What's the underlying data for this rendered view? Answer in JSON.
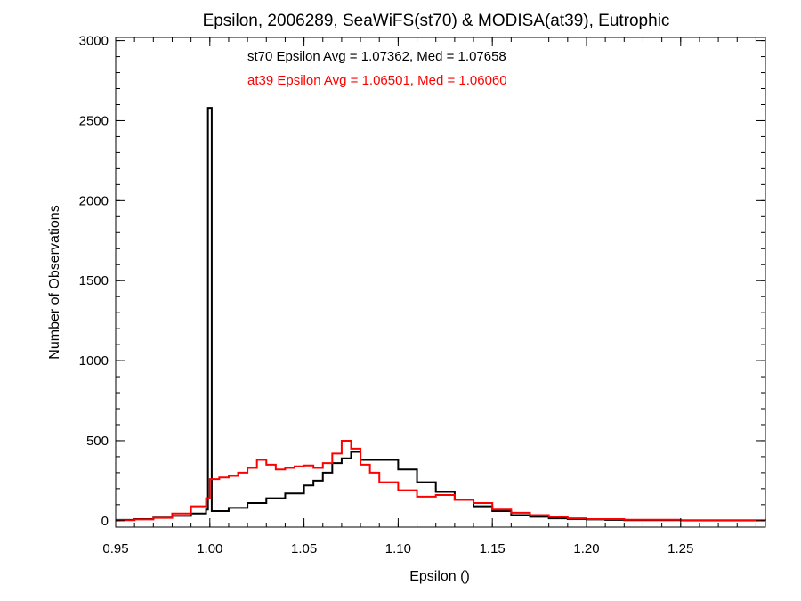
{
  "chart_data": {
    "type": "line",
    "step": true,
    "title": "Epsilon, 2006289, SeaWiFS(st70) & MODISA(at39), Eutrophic",
    "xlabel": "Epsilon ()",
    "ylabel": "Number of Observations",
    "xlim": [
      0.95,
      1.295
    ],
    "ylim": [
      -40,
      3020
    ],
    "x_ticks": [
      0.95,
      1.0,
      1.05,
      1.1,
      1.15,
      1.2,
      1.25
    ],
    "x_tick_labels": [
      "0.95",
      "1.00",
      "1.05",
      "1.10",
      "1.15",
      "1.20",
      "1.25"
    ],
    "y_ticks": [
      0,
      500,
      1000,
      1500,
      2000,
      2500,
      3000
    ],
    "y_tick_labels": [
      "0",
      "500",
      "1000",
      "1500",
      "2000",
      "2500",
      "3000"
    ],
    "grid": false,
    "annotations": [
      {
        "text": "st70 Epsilon Avg = 1.07362, Med = 1.07658",
        "color": "#000000"
      },
      {
        "text": "at39 Epsilon Avg = 1.06501, Med = 1.06060",
        "color": "#ff0000"
      }
    ],
    "series": [
      {
        "color": "#000000",
        "x": [
          0.95,
          0.96,
          0.97,
          0.98,
          0.99,
          0.998,
          0.999,
          1.0,
          1.001,
          1.01,
          1.02,
          1.03,
          1.04,
          1.05,
          1.055,
          1.06,
          1.065,
          1.07,
          1.075,
          1.08,
          1.09,
          1.1,
          1.11,
          1.12,
          1.13,
          1.14,
          1.15,
          1.16,
          1.17,
          1.18,
          1.19,
          1.2,
          1.21,
          1.22,
          1.25,
          1.295
        ],
        "y": [
          5,
          10,
          20,
          30,
          45,
          70,
          2580,
          2580,
          60,
          80,
          110,
          140,
          170,
          220,
          250,
          300,
          360,
          390,
          430,
          380,
          380,
          320,
          240,
          180,
          130,
          90,
          60,
          35,
          25,
          15,
          10,
          8,
          5,
          3,
          2,
          1
        ]
      },
      {
        "color": "#ff0000",
        "x": [
          0.95,
          0.96,
          0.97,
          0.98,
          0.99,
          0.998,
          1.0,
          1.005,
          1.01,
          1.015,
          1.02,
          1.025,
          1.03,
          1.035,
          1.04,
          1.045,
          1.05,
          1.055,
          1.06,
          1.065,
          1.07,
          1.075,
          1.08,
          1.085,
          1.09,
          1.1,
          1.11,
          1.12,
          1.13,
          1.14,
          1.15,
          1.16,
          1.17,
          1.18,
          1.19,
          1.2,
          1.22,
          1.25,
          1.295
        ],
        "y": [
          3,
          8,
          18,
          45,
          90,
          140,
          260,
          270,
          280,
          300,
          330,
          380,
          350,
          320,
          330,
          340,
          345,
          330,
          360,
          420,
          500,
          450,
          350,
          300,
          240,
          190,
          150,
          160,
          130,
          110,
          70,
          50,
          35,
          25,
          15,
          10,
          6,
          3,
          1
        ]
      }
    ]
  }
}
